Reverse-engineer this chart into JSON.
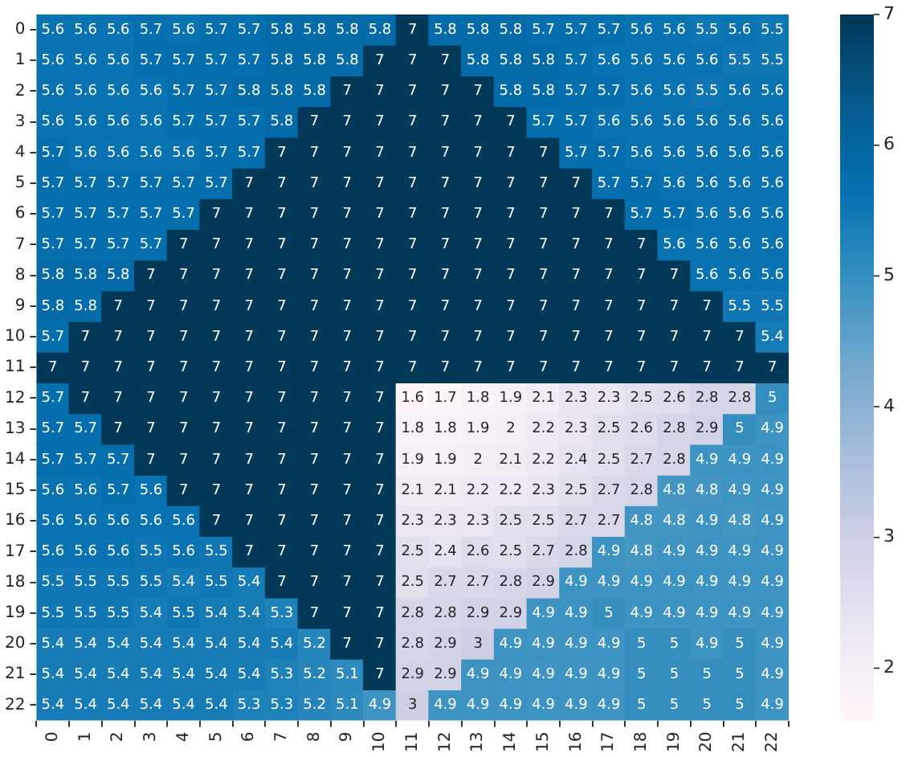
{
  "chart_data": {
    "type": "heatmap",
    "categories": [
      "0",
      "1",
      "2",
      "3",
      "4",
      "5",
      "6",
      "7",
      "8",
      "9",
      "10",
      "11",
      "12",
      "13",
      "14",
      "15",
      "16",
      "17",
      "18",
      "19",
      "20",
      "21",
      "22"
    ],
    "y_categories": [
      "0",
      "1",
      "2",
      "3",
      "4",
      "5",
      "6",
      "7",
      "8",
      "9",
      "10",
      "11",
      "12",
      "13",
      "14",
      "15",
      "16",
      "17",
      "18",
      "19",
      "20",
      "21",
      "22"
    ],
    "cells": [
      [
        5.6,
        5.6,
        5.6,
        5.7,
        5.6,
        5.7,
        5.7,
        5.8,
        5.8,
        5.8,
        5.8,
        7,
        5.8,
        5.8,
        5.8,
        5.7,
        5.7,
        5.7,
        5.6,
        5.6,
        5.5,
        5.6,
        5.5
      ],
      [
        5.6,
        5.6,
        5.6,
        5.7,
        5.7,
        5.7,
        5.7,
        5.8,
        5.8,
        5.8,
        7,
        7,
        7,
        5.8,
        5.8,
        5.8,
        5.7,
        5.6,
        5.6,
        5.6,
        5.6,
        5.5,
        5.5
      ],
      [
        5.6,
        5.6,
        5.6,
        5.6,
        5.7,
        5.7,
        5.8,
        5.8,
        5.8,
        7,
        7,
        7,
        7,
        7,
        5.8,
        5.8,
        5.7,
        5.7,
        5.6,
        5.6,
        5.5,
        5.6,
        5.6
      ],
      [
        5.6,
        5.6,
        5.6,
        5.6,
        5.7,
        5.7,
        5.7,
        5.8,
        7,
        7,
        7,
        7,
        7,
        7,
        7,
        5.7,
        5.7,
        5.6,
        5.6,
        5.6,
        5.6,
        5.6,
        5.6
      ],
      [
        5.7,
        5.6,
        5.6,
        5.6,
        5.6,
        5.7,
        5.7,
        7,
        7,
        7,
        7,
        7,
        7,
        7,
        7,
        7,
        5.7,
        5.7,
        5.6,
        5.6,
        5.6,
        5.6,
        5.6
      ],
      [
        5.7,
        5.7,
        5.7,
        5.7,
        5.7,
        5.7,
        7,
        7,
        7,
        7,
        7,
        7,
        7,
        7,
        7,
        7,
        7,
        5.7,
        5.7,
        5.6,
        5.6,
        5.6,
        5.6
      ],
      [
        5.7,
        5.7,
        5.7,
        5.7,
        5.7,
        7,
        7,
        7,
        7,
        7,
        7,
        7,
        7,
        7,
        7,
        7,
        7,
        7,
        5.7,
        5.7,
        5.6,
        5.6,
        5.6
      ],
      [
        5.7,
        5.7,
        5.7,
        5.7,
        7,
        7,
        7,
        7,
        7,
        7,
        7,
        7,
        7,
        7,
        7,
        7,
        7,
        7,
        7,
        5.6,
        5.6,
        5.6,
        5.6
      ],
      [
        5.8,
        5.8,
        5.8,
        7,
        7,
        7,
        7,
        7,
        7,
        7,
        7,
        7,
        7,
        7,
        7,
        7,
        7,
        7,
        7,
        7,
        5.6,
        5.6,
        5.6
      ],
      [
        5.8,
        5.8,
        7,
        7,
        7,
        7,
        7,
        7,
        7,
        7,
        7,
        7,
        7,
        7,
        7,
        7,
        7,
        7,
        7,
        7,
        7,
        5.5,
        5.5
      ],
      [
        5.7,
        7,
        7,
        7,
        7,
        7,
        7,
        7,
        7,
        7,
        7,
        7,
        7,
        7,
        7,
        7,
        7,
        7,
        7,
        7,
        7,
        7,
        5.4
      ],
      [
        7,
        7,
        7,
        7,
        7,
        7,
        7,
        7,
        7,
        7,
        7,
        7,
        7,
        7,
        7,
        7,
        7,
        7,
        7,
        7,
        7,
        7,
        7
      ],
      [
        5.7,
        7,
        7,
        7,
        7,
        7,
        7,
        7,
        7,
        7,
        7,
        1.6,
        1.7,
        1.8,
        1.9,
        2.1,
        2.3,
        2.3,
        2.5,
        2.6,
        2.8,
        2.8,
        5
      ],
      [
        5.7,
        5.7,
        7,
        7,
        7,
        7,
        7,
        7,
        7,
        7,
        7,
        1.8,
        1.8,
        1.9,
        2,
        2.2,
        2.3,
        2.5,
        2.6,
        2.8,
        2.9,
        5,
        4.9
      ],
      [
        5.7,
        5.7,
        5.7,
        7,
        7,
        7,
        7,
        7,
        7,
        7,
        7,
        1.9,
        1.9,
        2,
        2.1,
        2.2,
        2.4,
        2.5,
        2.7,
        2.8,
        4.9,
        4.9,
        4.9
      ],
      [
        5.6,
        5.6,
        5.7,
        5.6,
        7,
        7,
        7,
        7,
        7,
        7,
        7,
        2.1,
        2.1,
        2.2,
        2.2,
        2.3,
        2.5,
        2.7,
        2.8,
        4.8,
        4.8,
        4.9,
        4.9
      ],
      [
        5.6,
        5.6,
        5.6,
        5.6,
        5.6,
        7,
        7,
        7,
        7,
        7,
        7,
        2.3,
        2.3,
        2.3,
        2.5,
        2.5,
        2.7,
        2.7,
        4.8,
        4.8,
        4.9,
        4.8,
        4.9
      ],
      [
        5.6,
        5.6,
        5.6,
        5.5,
        5.6,
        5.5,
        7,
        7,
        7,
        7,
        7,
        2.5,
        2.4,
        2.6,
        2.5,
        2.7,
        2.8,
        4.9,
        4.8,
        4.9,
        4.9,
        4.9,
        4.9
      ],
      [
        5.5,
        5.5,
        5.5,
        5.5,
        5.4,
        5.5,
        5.4,
        7,
        7,
        7,
        7,
        2.5,
        2.7,
        2.7,
        2.8,
        2.9,
        4.9,
        4.9,
        4.9,
        4.9,
        4.9,
        4.9,
        4.9
      ],
      [
        5.5,
        5.5,
        5.5,
        5.4,
        5.5,
        5.4,
        5.4,
        5.3,
        7,
        7,
        7,
        2.8,
        2.8,
        2.9,
        2.9,
        4.9,
        4.9,
        5,
        4.9,
        4.9,
        4.9,
        4.9,
        4.9
      ],
      [
        5.4,
        5.4,
        5.4,
        5.4,
        5.4,
        5.4,
        5.4,
        5.4,
        5.2,
        7,
        7,
        2.8,
        2.9,
        3,
        4.9,
        4.9,
        4.9,
        4.9,
        5,
        5,
        4.9,
        5,
        4.9
      ],
      [
        5.4,
        5.4,
        5.4,
        5.4,
        5.4,
        5.4,
        5.4,
        5.3,
        5.2,
        5.1,
        7,
        2.9,
        2.9,
        4.9,
        4.9,
        4.9,
        4.9,
        4.9,
        5,
        5,
        5,
        5,
        4.9
      ],
      [
        5.4,
        5.4,
        5.4,
        5.4,
        5.4,
        5.4,
        5.3,
        5.3,
        5.2,
        5.1,
        4.9,
        3,
        4.9,
        4.9,
        4.9,
        4.9,
        4.9,
        4.9,
        5,
        5,
        5,
        5,
        4.9
      ]
    ],
    "clim": [
      1.6,
      7
    ],
    "cticks": [
      2,
      3,
      4,
      5,
      6,
      7
    ],
    "data_labels": true
  }
}
